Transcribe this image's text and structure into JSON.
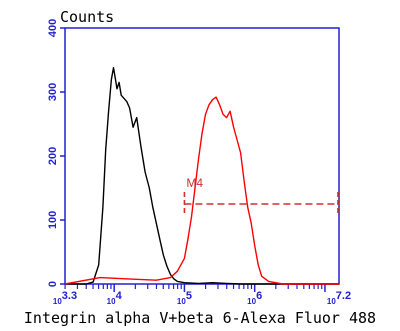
{
  "chart_data": {
    "type": "line",
    "title": "",
    "ylabel": "Counts",
    "xlabel": "Integrin alpha V+beta 6-Alexa Fluor 488",
    "x_scale": "log10",
    "xlim": [
      3.3,
      7.2
    ],
    "ylim": [
      0,
      400
    ],
    "x_tick_labels": [
      "10^3.3",
      "10^4",
      "10^5",
      "10^6",
      "10^7.2"
    ],
    "y_ticks": [
      0,
      100,
      200,
      300,
      400
    ],
    "grid": false,
    "legend": "none",
    "series": [
      {
        "color": "#000000",
        "x": [
          3.3,
          3.6,
          3.7,
          3.78,
          3.84,
          3.88,
          3.92,
          3.96,
          3.99,
          4.01,
          4.04,
          4.07,
          4.1,
          4.14,
          4.18,
          4.22,
          4.27,
          4.32,
          4.38,
          4.44,
          4.5,
          4.55,
          4.6,
          4.65,
          4.7,
          4.75,
          4.8,
          4.85,
          4.9,
          5.0,
          5.2,
          5.4,
          5.6,
          5.8,
          6.2,
          7.2
        ],
        "y": [
          0,
          0,
          3,
          30,
          120,
          210,
          270,
          320,
          338,
          325,
          305,
          315,
          295,
          290,
          285,
          275,
          245,
          260,
          215,
          175,
          150,
          120,
          95,
          70,
          45,
          28,
          15,
          8,
          4,
          2,
          1,
          2,
          1,
          0,
          0,
          0
        ]
      },
      {
        "color": "#ff0000",
        "x": [
          3.3,
          3.8,
          4.2,
          4.6,
          4.8,
          4.9,
          5.0,
          5.05,
          5.1,
          5.15,
          5.2,
          5.25,
          5.3,
          5.35,
          5.4,
          5.45,
          5.5,
          5.55,
          5.6,
          5.65,
          5.7,
          5.75,
          5.8,
          5.85,
          5.9,
          5.95,
          6.0,
          6.05,
          6.1,
          6.2,
          6.4,
          7.2
        ],
        "y": [
          0,
          10,
          8,
          6,
          10,
          20,
          40,
          70,
          105,
          150,
          195,
          235,
          265,
          280,
          288,
          292,
          280,
          265,
          260,
          270,
          245,
          225,
          205,
          160,
          120,
          95,
          60,
          30,
          12,
          4,
          0,
          0
        ]
      }
    ],
    "annotations": [
      {
        "label": "M4",
        "color": "#d03030",
        "x_start": 5.0,
        "x_end": 7.2,
        "y": 125
      }
    ]
  }
}
